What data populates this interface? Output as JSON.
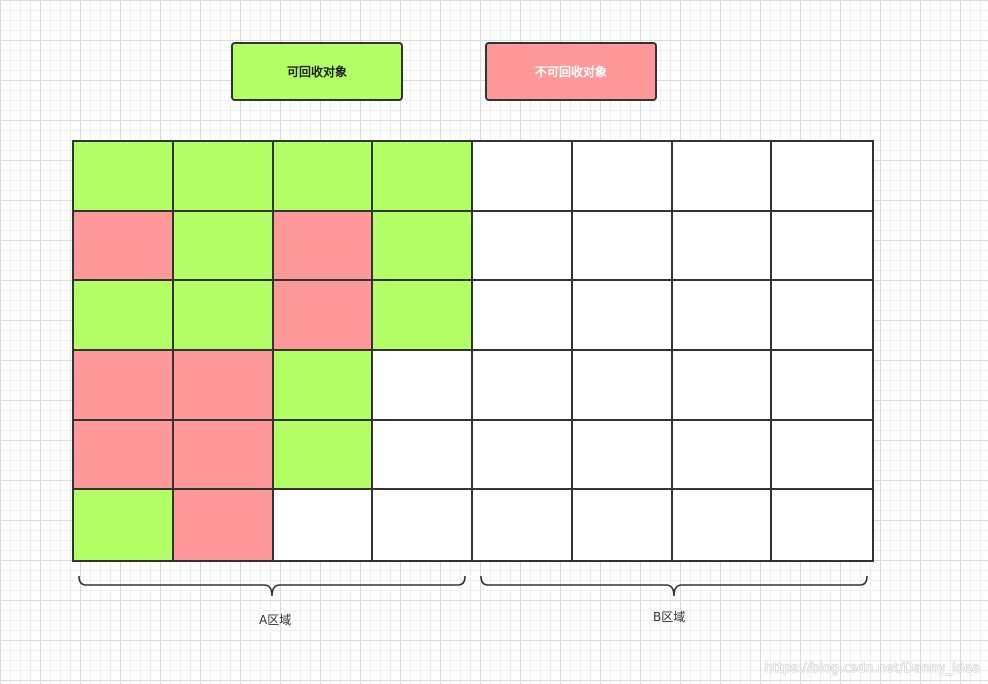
{
  "legend": {
    "recyclable": {
      "label": "可回收对象",
      "color": "#b3ff66"
    },
    "non_recyclable": {
      "label": "不可回收对象",
      "color": "#ff9999"
    }
  },
  "colors": {
    "empty": "#ffffff",
    "border": "#333333"
  },
  "grid": {
    "rows": [
      [
        "G",
        "G",
        "G",
        "G",
        "E",
        "E",
        "E",
        "E"
      ],
      [
        "R",
        "G",
        "R",
        "G",
        "E",
        "E",
        "E",
        "E"
      ],
      [
        "G",
        "G",
        "R",
        "G",
        "E",
        "E",
        "E",
        "E"
      ],
      [
        "R",
        "R",
        "G",
        "E",
        "E",
        "E",
        "E",
        "E"
      ],
      [
        "R",
        "R",
        "G",
        "E",
        "E",
        "E",
        "E",
        "E"
      ],
      [
        "G",
        "R",
        "E",
        "E",
        "E",
        "E",
        "E",
        "E"
      ]
    ]
  },
  "regions": [
    {
      "label": "A区域"
    },
    {
      "label": "B区域"
    }
  ],
  "watermark": "https://blog.csdn.net/Danny_idea"
}
